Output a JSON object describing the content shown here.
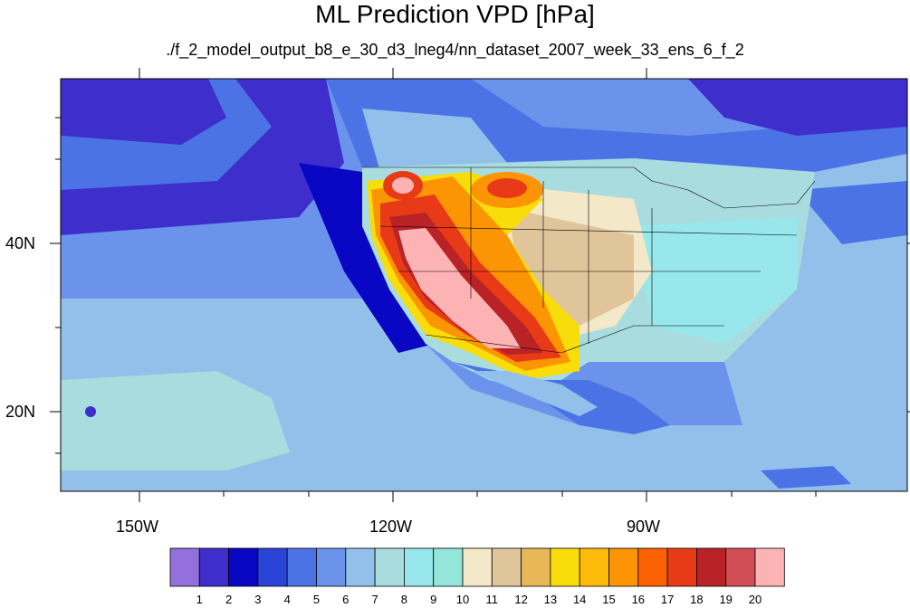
{
  "title": "ML Prediction VPD [hPa]",
  "subtitle": "./f_2_model_output_b8_e_30_d3_lneg4/nn_dataset_2007_week_33_ens_6_f_2",
  "lon_labels": [
    "150W",
    "120W",
    "90W"
  ],
  "lat_labels": [
    "40N",
    "20N"
  ],
  "colorbar": {
    "labels": [
      "1",
      "2",
      "3",
      "4",
      "5",
      "6",
      "7",
      "8",
      "9",
      "10",
      "11",
      "12",
      "13",
      "14",
      "15",
      "16",
      "17",
      "18",
      "19",
      "20"
    ],
    "colors": [
      "#9370db",
      "#3e2fcd",
      "#0a07c4",
      "#2b44d8",
      "#4c73e6",
      "#6b93eb",
      "#93c0ea",
      "#a9dcdf",
      "#98e7ec",
      "#93e6d9",
      "#f3e8c8",
      "#e0c59b",
      "#e8b757",
      "#f9dd0a",
      "#fdba08",
      "#fc9504",
      "#fc6203",
      "#e83a17",
      "#b92227",
      "#d24e56",
      "#fdb3b3"
    ]
  },
  "map_colors": {
    "ocean_deep": "#3e2fcd",
    "ocean_mid": "#4c73e6",
    "ocean_light": "#6b93eb",
    "ocean_pale": "#93c0ea",
    "land_cool": "#a9dcdf",
    "land_cyan": "#98e7ec",
    "land_tan": "#e0c59b",
    "land_beige": "#f3e8c8",
    "land_yellow": "#f9dd0a",
    "land_orange": "#fc9504",
    "land_red": "#e83a17",
    "land_darkred": "#b92227",
    "land_pink": "#fdb3b3"
  }
}
